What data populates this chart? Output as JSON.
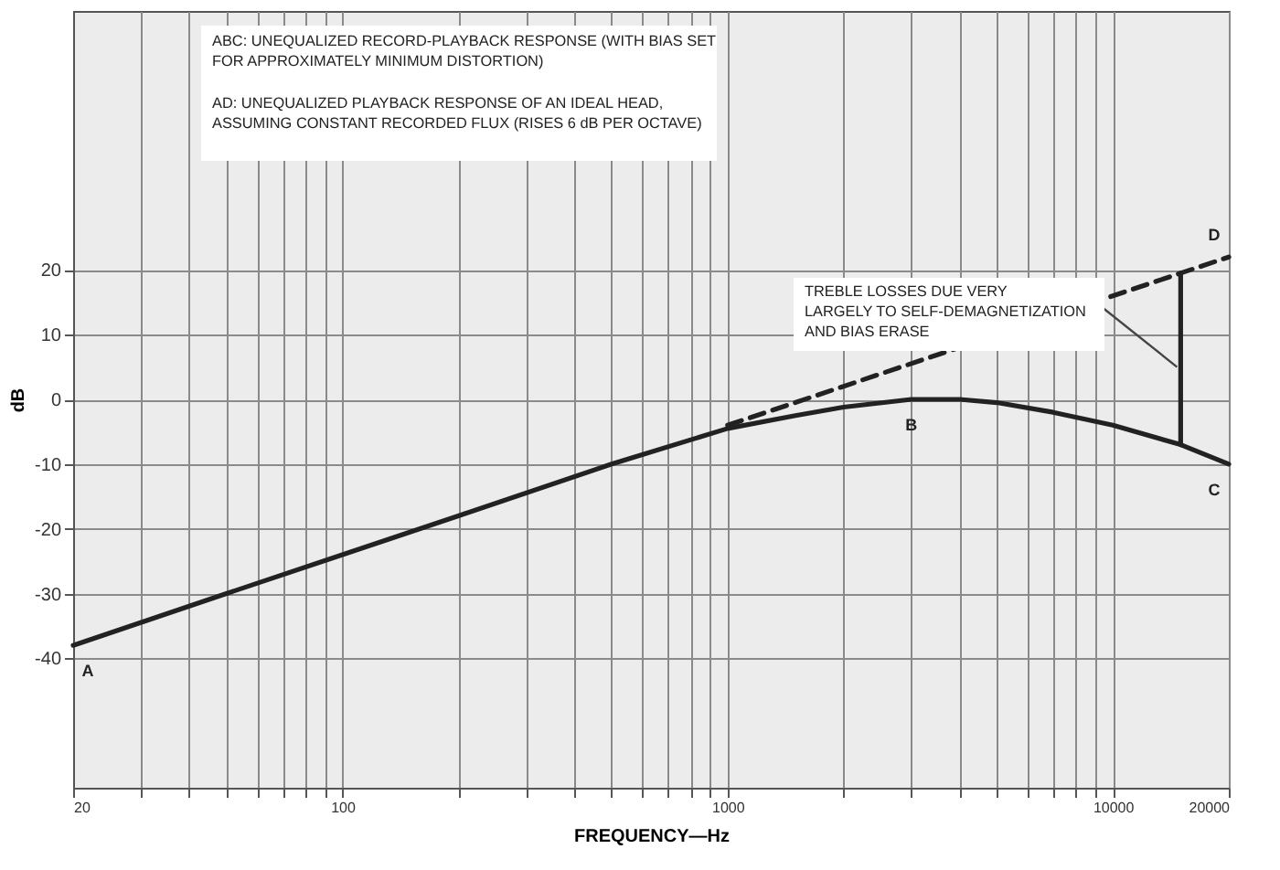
{
  "chart_data": {
    "type": "line",
    "xlabel": "FREQUENCY—Hz",
    "ylabel": "dB",
    "log": "x",
    "grid": true,
    "marker": "none",
    "xlim": [
      20,
      20000
    ],
    "ylim": [
      -60,
      60
    ],
    "xticks": [
      {
        "value": 20,
        "label": "20"
      },
      {
        "value": 30,
        "label": null
      },
      {
        "value": 40,
        "label": null
      },
      {
        "value": 50,
        "label": null
      },
      {
        "value": 60,
        "label": null
      },
      {
        "value": 70,
        "label": null
      },
      {
        "value": 80,
        "label": null
      },
      {
        "value": 90,
        "label": null
      },
      {
        "value": 100,
        "label": "100"
      },
      {
        "value": 200,
        "label": null
      },
      {
        "value": 300,
        "label": null
      },
      {
        "value": 400,
        "label": null
      },
      {
        "value": 500,
        "label": null
      },
      {
        "value": 600,
        "label": null
      },
      {
        "value": 700,
        "label": null
      },
      {
        "value": 800,
        "label": null
      },
      {
        "value": 900,
        "label": null
      },
      {
        "value": 1000,
        "label": "1000"
      },
      {
        "value": 2000,
        "label": null
      },
      {
        "value": 3000,
        "label": null
      },
      {
        "value": 4000,
        "label": null
      },
      {
        "value": 5000,
        "label": null
      },
      {
        "value": 6000,
        "label": null
      },
      {
        "value": 7000,
        "label": null
      },
      {
        "value": 8000,
        "label": null
      },
      {
        "value": 9000,
        "label": null
      },
      {
        "value": 10000,
        "label": "10000"
      },
      {
        "value": 20000,
        "label": "20000"
      }
    ],
    "yticks": [
      20,
      10,
      0,
      -10,
      -20,
      -30,
      -40
    ],
    "series": [
      {
        "color": "#222222",
        "line_style": "solid",
        "x": [
          20,
          50,
          100,
          200,
          500,
          1000,
          1500,
          2000,
          3000,
          4000,
          5000,
          7000,
          10000,
          15000,
          20000
        ],
        "values": [
          -38,
          -30,
          -24,
          -18,
          -10,
          -4.5,
          -2.5,
          -1.2,
          0,
          0,
          -0.5,
          -2,
          -4,
          -7,
          -10
        ]
      },
      {
        "color": "#222222",
        "line_style": "dashed",
        "x": [
          1000,
          15000,
          20000
        ],
        "values": [
          -4,
          19.5,
          22
        ]
      },
      {
        "color": "#222222",
        "line_style": "solid",
        "x": [
          15000,
          15000
        ],
        "values": [
          -7,
          19.5
        ]
      }
    ],
    "annotations": [
      "ABC: UNEQUALIZED RECORD-PLAYBACK RESPONSE (WITH BIAS SET\nFOR APPROXIMATELY MINIMUM DISTORTION)",
      "AD: UNEQUALIZED PLAYBACK RESPONSE OF AN IDEAL HEAD,\nASSUMING CONSTANT RECORDED FLUX (RISES 6 dB PER OCTAVE)",
      {
        "text": "TREBLE LOSSES DUE VERY\nLARGELY TO SELF-DEMAGNETIZATION\nAND BIAS ERASE",
        "x": 15000,
        "y": 5
      },
      {
        "text": "A",
        "x": 20,
        "y": -38
      },
      {
        "text": "B",
        "x": 3000,
        "y": 0
      },
      {
        "text": "C",
        "x": 20000,
        "y": -10
      },
      {
        "text": "D",
        "x": 20000,
        "y": 22
      }
    ]
  }
}
